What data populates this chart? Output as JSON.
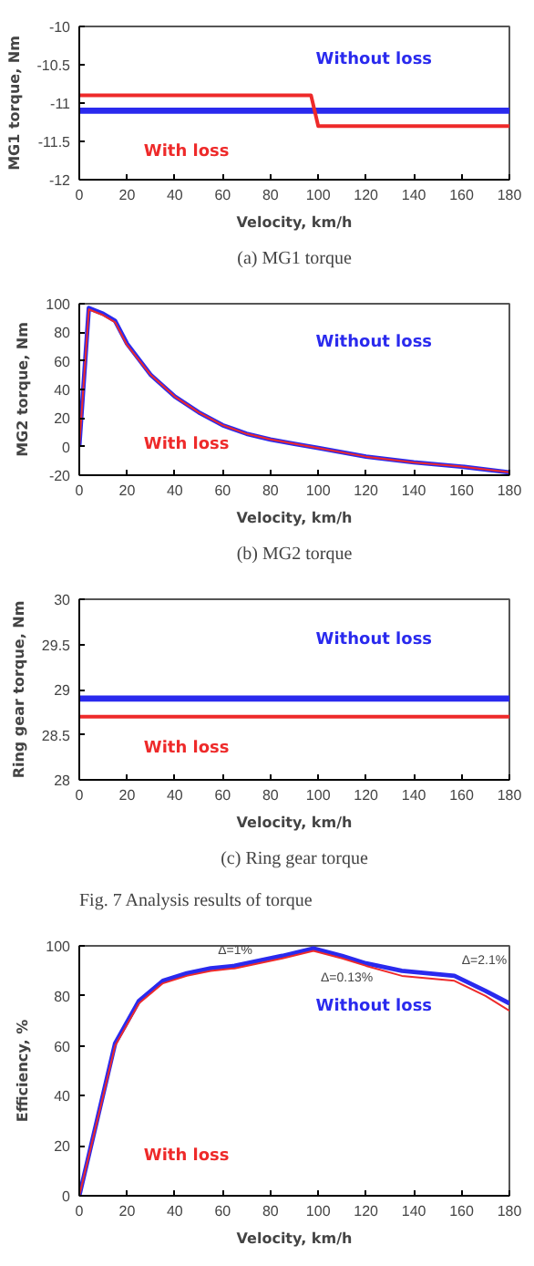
{
  "chart_data": [
    {
      "type": "line",
      "title": "(a) MG1 torque",
      "xlabel": "Velocity, km/h",
      "ylabel": "MG1 torque, Nm",
      "xlim": [
        0,
        180
      ],
      "xticks": [
        0,
        20,
        40,
        60,
        80,
        100,
        120,
        140,
        160,
        180
      ],
      "ylim": [
        -12,
        -10
      ],
      "yticks": [
        -12,
        -11.5,
        -11,
        -10.5,
        -10
      ],
      "grid": false,
      "legend": false,
      "series": [
        {
          "name": "With loss",
          "color": "#ee2a2a",
          "x": [
            0,
            97,
            100,
            180
          ],
          "values": [
            -10.9,
            -10.9,
            -11.3,
            -11.3
          ]
        },
        {
          "name": "Without loss",
          "color": "#2a2aee",
          "x": [
            0,
            180
          ],
          "values": [
            -11.1,
            -11.1
          ]
        }
      ]
    },
    {
      "type": "line",
      "title": "(b) MG2 torque",
      "xlabel": "Velocity, km/h",
      "ylabel": "MG2 torque, Nm",
      "xlim": [
        0,
        180
      ],
      "xticks": [
        0,
        20,
        40,
        60,
        80,
        100,
        120,
        140,
        160,
        180
      ],
      "ylim": [
        -20,
        100
      ],
      "yticks": [
        -20,
        0,
        20,
        40,
        60,
        80,
        100
      ],
      "grid": false,
      "legend": false,
      "series": [
        {
          "name": "With loss",
          "color": "#ee2a2a",
          "x": [
            0,
            4,
            10,
            15,
            20,
            30,
            40,
            50,
            60,
            70,
            80,
            90,
            100,
            120,
            140,
            160,
            180
          ],
          "values": [
            0,
            96,
            92,
            87,
            71,
            50,
            35,
            24,
            15,
            9,
            5,
            2,
            -1,
            -7,
            -11,
            -14,
            -18
          ]
        },
        {
          "name": "Without loss",
          "color": "#2a2aee",
          "x": [
            0,
            4,
            10,
            15,
            20,
            30,
            40,
            50,
            60,
            70,
            80,
            90,
            100,
            120,
            140,
            160,
            180
          ],
          "values": [
            0,
            97,
            93,
            88,
            72,
            50,
            35,
            24,
            15,
            9,
            5,
            2,
            -1,
            -7,
            -11,
            -14,
            -18
          ]
        }
      ]
    },
    {
      "type": "line",
      "title": "(c) Ring gear torque",
      "xlabel": "Velocity, km/h",
      "ylabel": "Ring gear torque, Nm",
      "xlim": [
        0,
        180
      ],
      "xticks": [
        0,
        20,
        40,
        60,
        80,
        100,
        120,
        140,
        160,
        180
      ],
      "ylim": [
        28,
        30
      ],
      "yticks": [
        28,
        28.5,
        29,
        29.5,
        30
      ],
      "grid": false,
      "legend": false,
      "annotations": [
        "Fig.  7  Analysis results of torque"
      ],
      "series": [
        {
          "name": "With loss",
          "color": "#ee2a2a",
          "x": [
            0,
            180
          ],
          "values": [
            28.7,
            28.7
          ]
        },
        {
          "name": "Without loss",
          "color": "#2a2aee",
          "x": [
            0,
            180
          ],
          "values": [
            28.9,
            28.9
          ]
        }
      ]
    },
    {
      "type": "line",
      "xlabel": "Velocity, km/h",
      "ylabel": "Efficiency, %",
      "xlim": [
        0,
        180
      ],
      "xticks": [
        0,
        20,
        40,
        60,
        80,
        100,
        120,
        140,
        160,
        180
      ],
      "ylim": [
        0,
        100
      ],
      "yticks": [
        0,
        20,
        40,
        60,
        80,
        100
      ],
      "grid": false,
      "legend": false,
      "annotations": [
        {
          "text": "Δ=1%",
          "x": 55,
          "y": 91
        },
        {
          "text": "Δ=0.13%",
          "x": 98,
          "y": 99
        },
        {
          "text": "Δ=2.1%",
          "x": 157,
          "y": 87
        }
      ],
      "series": [
        {
          "name": "With loss",
          "color": "#ee2a2a",
          "x": [
            0,
            15,
            25,
            35,
            45,
            55,
            65,
            75,
            85,
            98,
            110,
            120,
            135,
            157,
            170,
            180
          ],
          "values": [
            0,
            60,
            77,
            85,
            88,
            90,
            91,
            93,
            95,
            98,
            95,
            92,
            88,
            86,
            80,
            74
          ]
        },
        {
          "name": "Without loss",
          "color": "#2a2aee",
          "x": [
            0,
            15,
            25,
            35,
            45,
            55,
            65,
            75,
            85,
            98,
            110,
            120,
            135,
            157,
            170,
            180
          ],
          "values": [
            0,
            61,
            78,
            86,
            89,
            91,
            92,
            94,
            96,
            99,
            96,
            93,
            90,
            88,
            82,
            77
          ]
        }
      ]
    }
  ]
}
